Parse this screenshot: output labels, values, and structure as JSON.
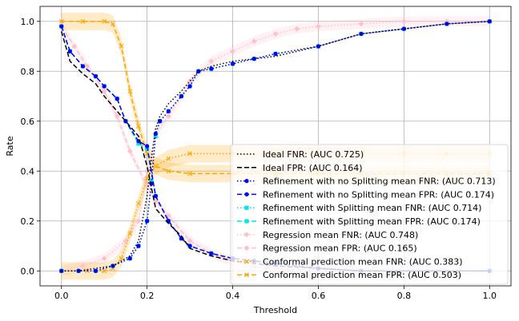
{
  "chart_data": {
    "type": "line",
    "title": "",
    "xlabel": "Threshold",
    "ylabel": "Rate",
    "xlim": [
      -0.05,
      1.05
    ],
    "ylim": [
      -0.06,
      1.06
    ],
    "x_ticks": [
      "0.0",
      "0.2",
      "0.4",
      "0.6",
      "0.8",
      "1.0"
    ],
    "y_ticks": [
      "0.0",
      "0.2",
      "0.4",
      "0.6",
      "0.8",
      "1.0"
    ],
    "grid": true,
    "legend_position": "lower-right",
    "series": [
      {
        "name": "Ideal FNR: (AUC 0.725)",
        "color": "#000000",
        "dash": "dotted",
        "marker": "none",
        "x": [
          0,
          0.04,
          0.08,
          0.12,
          0.16,
          0.18,
          0.2,
          0.21,
          0.22,
          0.23,
          0.25,
          0.28,
          0.3,
          0.32,
          0.35,
          0.4,
          0.45,
          0.5,
          0.6,
          0.7,
          0.8,
          0.9,
          1.0
        ],
        "y": [
          0,
          0,
          0.01,
          0.02,
          0.06,
          0.12,
          0.3,
          0.45,
          0.57,
          0.62,
          0.67,
          0.72,
          0.76,
          0.8,
          0.82,
          0.84,
          0.85,
          0.86,
          0.9,
          0.95,
          0.97,
          0.99,
          1.0
        ]
      },
      {
        "name": "Ideal FPR: (AUC 0.164)",
        "color": "#000000",
        "dash": "dashed",
        "marker": "none",
        "x": [
          0,
          0.02,
          0.05,
          0.08,
          0.1,
          0.13,
          0.16,
          0.18,
          0.2,
          0.22,
          0.25,
          0.28,
          0.3,
          0.35,
          0.4,
          0.45,
          0.5,
          0.6,
          0.7,
          1.0
        ],
        "y": [
          0.96,
          0.84,
          0.79,
          0.75,
          0.7,
          0.64,
          0.58,
          0.54,
          0.42,
          0.25,
          0.19,
          0.14,
          0.09,
          0.06,
          0.04,
          0.03,
          0.02,
          0.01,
          0.0,
          0.0
        ]
      },
      {
        "name": "Refinement with no Splitting mean FNR: (AUC 0.713)",
        "color": "#0000ff",
        "dash": "dotted",
        "marker": "circle",
        "x": [
          0,
          0.04,
          0.08,
          0.12,
          0.16,
          0.18,
          0.2,
          0.21,
          0.22,
          0.23,
          0.25,
          0.28,
          0.3,
          0.32,
          0.35,
          0.4,
          0.45,
          0.5,
          0.6,
          0.7,
          0.8,
          0.9,
          1.0
        ],
        "y": [
          0,
          0,
          0,
          0.02,
          0.05,
          0.1,
          0.2,
          0.35,
          0.55,
          0.6,
          0.64,
          0.7,
          0.74,
          0.8,
          0.81,
          0.83,
          0.85,
          0.87,
          0.9,
          0.95,
          0.97,
          0.99,
          1.0
        ]
      },
      {
        "name": "Refinement with no Splitting mean FPR: (AUC 0.174)",
        "color": "#0000ff",
        "dash": "dashed",
        "marker": "circle",
        "x": [
          0,
          0.02,
          0.05,
          0.08,
          0.1,
          0.13,
          0.15,
          0.18,
          0.2,
          0.22,
          0.25,
          0.28,
          0.3,
          0.35,
          0.4,
          0.45,
          0.5,
          0.6,
          0.7,
          1.0
        ],
        "y": [
          0.98,
          0.88,
          0.82,
          0.78,
          0.74,
          0.69,
          0.6,
          0.52,
          0.5,
          0.3,
          0.2,
          0.13,
          0.1,
          0.07,
          0.05,
          0.04,
          0.03,
          0.01,
          0.0,
          0.0
        ]
      },
      {
        "name": "Refinement with Splitting mean FNR: (AUC 0.714)",
        "color": "#00e5ee",
        "dash": "dotted",
        "marker": "square",
        "x": [
          0,
          0.04,
          0.08,
          0.12,
          0.16,
          0.18,
          0.2,
          0.21,
          0.22,
          0.23,
          0.25,
          0.28,
          0.3,
          0.32,
          0.35,
          0.4,
          0.45,
          0.5,
          0.6,
          0.7,
          0.8,
          0.9,
          1.0
        ],
        "y": [
          0,
          0,
          0,
          0.02,
          0.05,
          0.1,
          0.2,
          0.36,
          0.54,
          0.6,
          0.64,
          0.7,
          0.74,
          0.8,
          0.81,
          0.83,
          0.85,
          0.87,
          0.9,
          0.95,
          0.97,
          0.99,
          1.0
        ]
      },
      {
        "name": "Refinement with Splitting mean FPR: (AUC 0.174)",
        "color": "#00e5ee",
        "dash": "dashed",
        "marker": "square",
        "x": [
          0,
          0.02,
          0.05,
          0.08,
          0.1,
          0.13,
          0.15,
          0.18,
          0.2,
          0.22,
          0.25,
          0.28,
          0.3,
          0.35,
          0.4,
          0.45,
          0.5,
          0.6,
          0.7,
          1.0
        ],
        "y": [
          0.98,
          0.88,
          0.82,
          0.78,
          0.74,
          0.69,
          0.6,
          0.51,
          0.49,
          0.3,
          0.2,
          0.13,
          0.1,
          0.07,
          0.05,
          0.04,
          0.03,
          0.01,
          0.0,
          0.0
        ]
      },
      {
        "name": "Regression mean FNR: (AUC 0.748)",
        "color": "#ffc0cb",
        "dash": "dotted",
        "marker": "diamond",
        "x": [
          0,
          0.05,
          0.1,
          0.15,
          0.18,
          0.2,
          0.22,
          0.25,
          0.28,
          0.3,
          0.35,
          0.4,
          0.45,
          0.5,
          0.55,
          0.6,
          0.7,
          0.8,
          0.9,
          1.0
        ],
        "y": [
          0,
          0.02,
          0.05,
          0.12,
          0.2,
          0.4,
          0.55,
          0.62,
          0.7,
          0.76,
          0.84,
          0.88,
          0.92,
          0.95,
          0.97,
          0.98,
          0.99,
          1.0,
          1.0,
          1.0
        ]
      },
      {
        "name": "Regression mean FPR: (AUC 0.165)",
        "color": "#ffc0cb",
        "dash": "dashed",
        "marker": "diamond",
        "x": [
          0,
          0.03,
          0.06,
          0.1,
          0.13,
          0.16,
          0.2,
          0.22,
          0.25,
          0.3,
          0.35,
          0.4,
          0.45,
          0.5,
          0.6,
          0.7,
          1.0
        ],
        "y": [
          0.98,
          0.9,
          0.82,
          0.72,
          0.62,
          0.48,
          0.34,
          0.28,
          0.22,
          0.12,
          0.07,
          0.04,
          0.02,
          0.01,
          0.0,
          0.0,
          0.0
        ]
      },
      {
        "name": "Conformal prediction mean FNR: (AUC 0.383)",
        "color": "#ffa500",
        "dash": "dotted",
        "marker": "x",
        "x": [
          0,
          0.06,
          0.1,
          0.12,
          0.14,
          0.16,
          0.18,
          0.2,
          0.22,
          0.25,
          0.3,
          0.4,
          0.5,
          0.6,
          0.7,
          0.8,
          0.9,
          1.0
        ],
        "y": [
          0,
          0,
          0,
          0.01,
          0.05,
          0.15,
          0.27,
          0.37,
          0.42,
          0.45,
          0.47,
          0.47,
          0.47,
          0.47,
          0.47,
          0.47,
          0.47,
          0.47
        ]
      },
      {
        "name": "Conformal prediction mean FPR: (AUC 0.503)",
        "color": "#ffa500",
        "dash": "dashed",
        "marker": "x",
        "x": [
          0,
          0.05,
          0.1,
          0.12,
          0.14,
          0.16,
          0.18,
          0.2,
          0.22,
          0.25,
          0.3,
          0.4,
          0.5,
          0.6,
          0.7,
          0.8,
          0.9,
          1.0
        ],
        "y": [
          1.0,
          1.0,
          1.0,
          0.99,
          0.9,
          0.72,
          0.58,
          0.47,
          0.42,
          0.4,
          0.39,
          0.39,
          0.39,
          0.39,
          0.39,
          0.39,
          0.39,
          0.39
        ]
      }
    ]
  }
}
